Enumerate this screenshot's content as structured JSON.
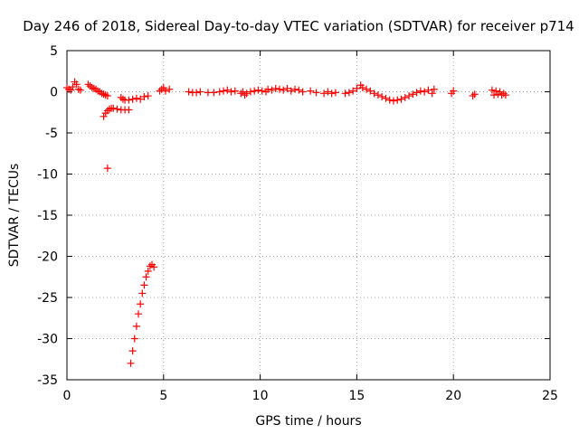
{
  "chart_data": {
    "type": "scatter",
    "title": "Day 246 of 2018, Sidereal Day-to-day VTEC variation (SDTVAR) for receiver p714",
    "xlabel": "GPS time / hours",
    "ylabel": "SDTVAR / TECUs",
    "xlim": [
      0,
      25
    ],
    "ylim": [
      -35,
      5
    ],
    "xticks": [
      0,
      5,
      10,
      15,
      20,
      25
    ],
    "yticks": [
      5,
      0,
      -5,
      -10,
      -15,
      -20,
      -25,
      -30,
      -35
    ],
    "xtick_labels": [
      "0",
      "5",
      "10",
      "15",
      "20",
      "25"
    ],
    "ytick_labels": [
      "5",
      "0",
      "-5",
      "-10",
      "-15",
      "-20",
      "-25",
      "-30",
      "-35"
    ],
    "grid": true,
    "marker": "plus",
    "color": "#ff0000",
    "series": [
      {
        "name": "SDTVAR",
        "points": [
          [
            0.0,
            0.5
          ],
          [
            0.1,
            0.3
          ],
          [
            0.2,
            0.2
          ],
          [
            0.3,
            0.6
          ],
          [
            0.4,
            1.2
          ],
          [
            0.5,
            0.9
          ],
          [
            0.6,
            0.3
          ],
          [
            0.7,
            0.2
          ],
          [
            1.1,
            0.9
          ],
          [
            1.2,
            0.7
          ],
          [
            1.3,
            0.5
          ],
          [
            1.4,
            0.4
          ],
          [
            1.5,
            0.3
          ],
          [
            1.6,
            0.1
          ],
          [
            1.7,
            0.0
          ],
          [
            1.8,
            -0.2
          ],
          [
            1.9,
            -0.3
          ],
          [
            2.0,
            -0.4
          ],
          [
            2.1,
            -0.5
          ],
          [
            1.9,
            -3.0
          ],
          [
            2.0,
            -2.6
          ],
          [
            2.1,
            -2.3
          ],
          [
            2.2,
            -2.1
          ],
          [
            2.3,
            -2.0
          ],
          [
            2.4,
            -2.0
          ],
          [
            2.6,
            -2.1
          ],
          [
            2.8,
            -2.2
          ],
          [
            3.0,
            -2.2
          ],
          [
            3.2,
            -2.2
          ],
          [
            2.1,
            -9.3
          ],
          [
            2.8,
            -0.7
          ],
          [
            2.9,
            -0.9
          ],
          [
            3.0,
            -1.0
          ],
          [
            3.2,
            -1.0
          ],
          [
            3.4,
            -0.9
          ],
          [
            3.6,
            -0.8
          ],
          [
            3.8,
            -0.9
          ],
          [
            4.0,
            -0.6
          ],
          [
            4.2,
            -0.5
          ],
          [
            3.3,
            -33.0
          ],
          [
            3.4,
            -31.5
          ],
          [
            3.5,
            -30.0
          ],
          [
            3.6,
            -28.5
          ],
          [
            3.7,
            -27.0
          ],
          [
            3.8,
            -25.8
          ],
          [
            3.9,
            -24.5
          ],
          [
            4.0,
            -23.5
          ],
          [
            4.1,
            -22.5
          ],
          [
            4.2,
            -21.8
          ],
          [
            4.3,
            -21.2
          ],
          [
            4.4,
            -21.0
          ],
          [
            4.5,
            -21.3
          ],
          [
            4.8,
            0.1
          ],
          [
            4.9,
            0.3
          ],
          [
            5.0,
            0.5
          ],
          [
            5.1,
            0.1
          ],
          [
            5.3,
            0.3
          ],
          [
            6.3,
            0.0
          ],
          [
            6.5,
            -0.1
          ],
          [
            6.7,
            -0.1
          ],
          [
            6.9,
            0.0
          ],
          [
            7.3,
            -0.1
          ],
          [
            7.6,
            -0.1
          ],
          [
            7.9,
            0.0
          ],
          [
            8.1,
            0.1
          ],
          [
            8.3,
            0.2
          ],
          [
            8.5,
            0.0
          ],
          [
            8.7,
            0.1
          ],
          [
            9.0,
            -0.2
          ],
          [
            9.1,
            0.0
          ],
          [
            9.2,
            -0.4
          ],
          [
            9.3,
            -0.2
          ],
          [
            9.5,
            0.0
          ],
          [
            9.7,
            0.1
          ],
          [
            9.9,
            0.2
          ],
          [
            10.1,
            0.1
          ],
          [
            10.3,
            0.0
          ],
          [
            10.4,
            0.3
          ],
          [
            10.6,
            0.2
          ],
          [
            10.8,
            0.4
          ],
          [
            11.0,
            0.3
          ],
          [
            11.2,
            0.2
          ],
          [
            11.4,
            0.4
          ],
          [
            11.6,
            0.1
          ],
          [
            11.8,
            0.3
          ],
          [
            12.0,
            0.2
          ],
          [
            12.2,
            0.0
          ],
          [
            12.6,
            0.1
          ],
          [
            12.9,
            -0.1
          ],
          [
            13.3,
            -0.2
          ],
          [
            13.5,
            0.0
          ],
          [
            13.7,
            -0.2
          ],
          [
            13.9,
            -0.1
          ],
          [
            14.4,
            -0.2
          ],
          [
            14.6,
            -0.1
          ],
          [
            14.8,
            0.1
          ],
          [
            15.0,
            0.4
          ],
          [
            15.2,
            0.8
          ],
          [
            15.3,
            0.5
          ],
          [
            15.5,
            0.3
          ],
          [
            15.7,
            0.1
          ],
          [
            15.9,
            -0.2
          ],
          [
            16.1,
            -0.4
          ],
          [
            16.3,
            -0.6
          ],
          [
            16.5,
            -0.8
          ],
          [
            16.7,
            -1.0
          ],
          [
            16.9,
            -1.1
          ],
          [
            17.1,
            -1.0
          ],
          [
            17.3,
            -0.9
          ],
          [
            17.5,
            -0.7
          ],
          [
            17.7,
            -0.5
          ],
          [
            17.9,
            -0.3
          ],
          [
            18.1,
            -0.1
          ],
          [
            18.3,
            0.1
          ],
          [
            18.5,
            0.0
          ],
          [
            18.7,
            0.2
          ],
          [
            18.9,
            -0.2
          ],
          [
            19.0,
            0.3
          ],
          [
            19.9,
            -0.2
          ],
          [
            20.0,
            0.1
          ],
          [
            21.0,
            -0.5
          ],
          [
            21.1,
            -0.3
          ],
          [
            22.0,
            0.2
          ],
          [
            22.1,
            -0.4
          ],
          [
            22.2,
            0.1
          ],
          [
            22.3,
            -0.3
          ],
          [
            22.4,
            0.0
          ],
          [
            22.5,
            -0.4
          ],
          [
            22.6,
            -0.2
          ],
          [
            22.7,
            -0.4
          ]
        ]
      }
    ]
  }
}
